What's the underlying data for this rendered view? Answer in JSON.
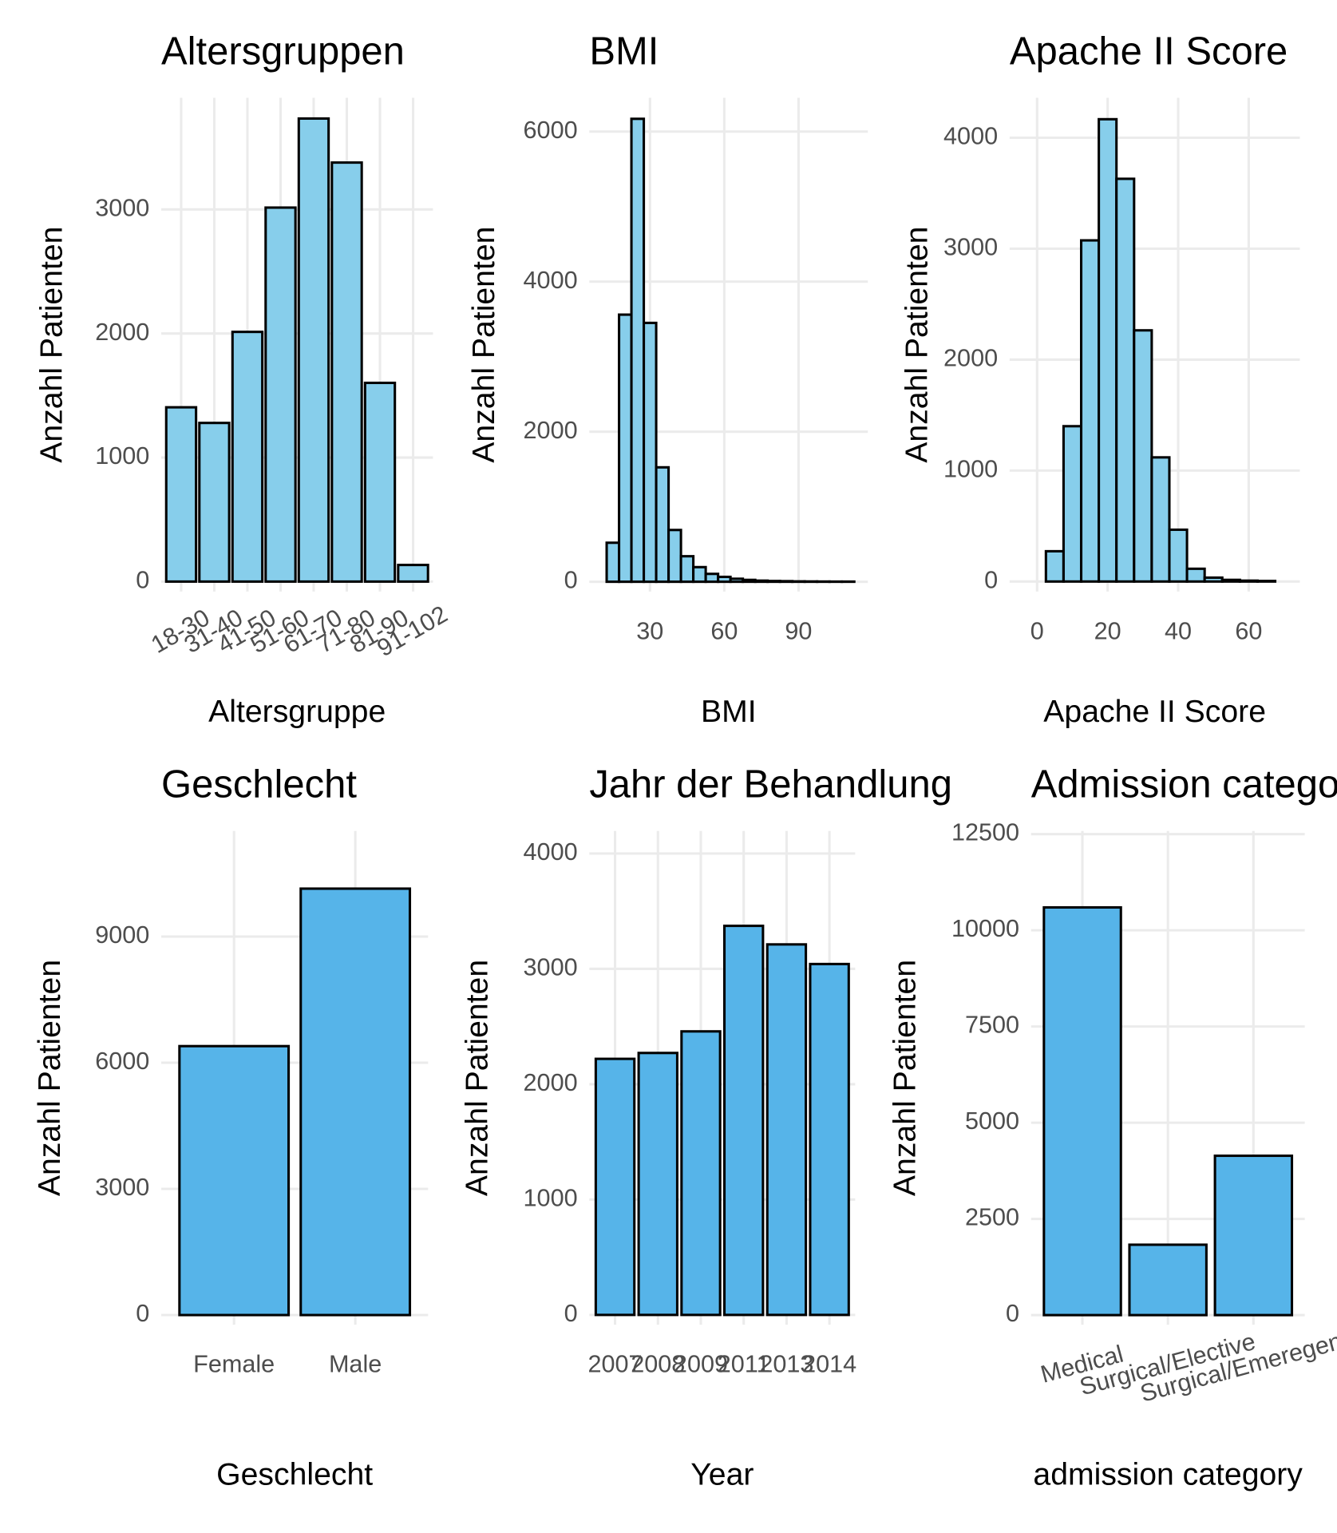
{
  "chart_data": [
    {
      "type": "bar",
      "title": "Altersgruppen",
      "xlabel": "Altersgruppe",
      "ylabel": "Anzahl Patienten",
      "categories": [
        "18-30",
        "31-40",
        "41-50",
        "51-60",
        "61-70",
        "71-80",
        "81-90",
        "91-102"
      ],
      "values": [
        1405,
        1279,
        2013,
        3015,
        3733,
        3378,
        1602,
        134
      ],
      "color": "#87ceeb",
      "ylim": [
        -80,
        3900
      ],
      "yticks": [
        0,
        1000,
        2000,
        3000
      ],
      "grid": true
    },
    {
      "type": "histogram",
      "title": "BMI",
      "xlabel": "BMI",
      "ylabel": "Anzahl Patienten",
      "bins": [
        12.5,
        17.5,
        22.5,
        27.5,
        32.5,
        37.5,
        42.5,
        47.5,
        52.5,
        57.5,
        62.5,
        67.5,
        72.5,
        77.5,
        82.5,
        87.5,
        92.5,
        97.5,
        102.5,
        107.5,
        112.5
      ],
      "counts": [
        520,
        3560,
        6170,
        3450,
        1525,
        690,
        340,
        195,
        105,
        65,
        40,
        25,
        15,
        10,
        8,
        5,
        4,
        3,
        2,
        2
      ],
      "color": "#87ceeb",
      "xlim": [
        5.5,
        118
      ],
      "xticks": [
        30,
        60,
        90
      ],
      "ylim": [
        -130,
        6450
      ],
      "yticks": [
        0,
        2000,
        4000,
        6000
      ],
      "grid": true
    },
    {
      "type": "histogram",
      "title": "Apache II Score",
      "xlabel": "Apache II Score",
      "ylabel": "Anzahl Patienten",
      "bins": [
        2.5,
        7.5,
        12.5,
        17.5,
        22.5,
        27.5,
        32.5,
        37.5,
        42.5,
        47.5,
        52.5,
        57.5,
        62.5,
        67.5
      ],
      "counts": [
        273,
        1400,
        3075,
        4167,
        3630,
        2264,
        1119,
        467,
        115,
        35,
        15,
        8,
        5
      ],
      "color": "#87ceeb",
      "xlim": [
        -7.8,
        74.5
      ],
      "xticks": [
        0,
        20,
        40,
        60
      ],
      "ylim": [
        -90,
        4360
      ],
      "yticks": [
        0,
        1000,
        2000,
        3000,
        4000
      ],
      "grid": true
    },
    {
      "type": "bar",
      "title": "Geschlecht",
      "xlabel": "Geschlecht",
      "ylabel": "Anzahl Patienten",
      "categories": [
        "Female",
        "Male"
      ],
      "values": [
        6395,
        10140
      ],
      "color": "#56b4e9",
      "ylim": [
        -230,
        11510
      ],
      "yticks": [
        0,
        3000,
        6000,
        9000
      ],
      "grid": true
    },
    {
      "type": "bar",
      "title": "Jahr der Behandlung",
      "xlabel": "Year",
      "ylabel": "Anzahl Patienten",
      "categories": [
        "2007",
        "2008",
        "2009",
        "2011",
        "2013",
        "2014"
      ],
      "values": [
        2220,
        2271,
        2458,
        3373,
        3212,
        3042
      ],
      "color": "#56b4e9",
      "ylim": [
        -85,
        4195
      ],
      "yticks": [
        0,
        1000,
        2000,
        3000,
        4000
      ],
      "grid": true
    },
    {
      "type": "bar",
      "title": "Admission category",
      "xlabel": "admission category",
      "ylabel": "Anzahl Patienten",
      "categories": [
        "Medical",
        "Surgical/Elective",
        "Surgical/Emeregency"
      ],
      "values": [
        10595,
        1829,
        4141
      ],
      "color": "#56b4e9",
      "ylim": [
        -250,
        12580
      ],
      "yticks": [
        0,
        2500,
        5000,
        7500,
        10000,
        12500
      ],
      "grid": true
    }
  ]
}
